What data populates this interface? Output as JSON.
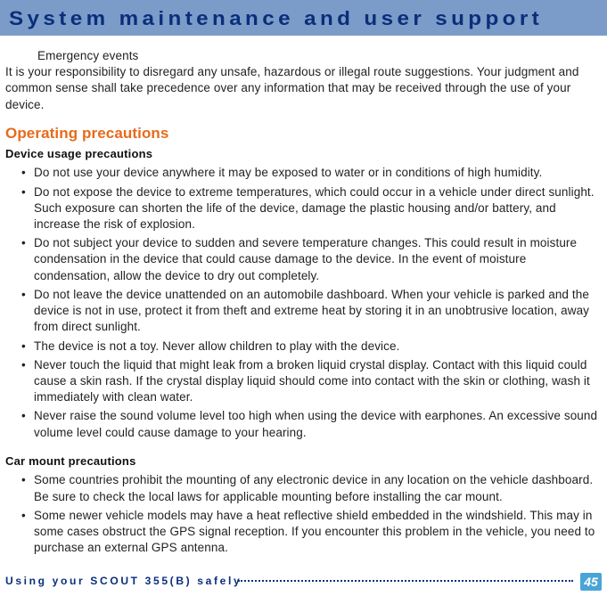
{
  "header": {
    "title": "System maintenance and user support"
  },
  "intro": {
    "line1": "Emergency events",
    "para": "It is your responsibility to disregard any unsafe, hazardous or illegal route suggestions. Your judgment and common sense shall take precedence over any information that may be received through the use of your device."
  },
  "section": {
    "heading": "Operating precautions",
    "sub1": {
      "title": "Device usage precautions",
      "items": [
        "Do not use your device anywhere it may be exposed to water or in conditions of high humidity.",
        "Do not expose the device to extreme temperatures, which could occur in a vehicle under direct sunlight. Such exposure can shorten the life of the device, damage the plastic housing and/or battery, and increase the risk of explosion.",
        "Do not subject your device to sudden and severe temperature changes. This could result in moisture condensation in the device that could cause damage to the device. In the event of moisture condensation, allow the device to dry out completely.",
        "Do not leave the device unattended on an automobile dashboard. When your vehicle is parked and the device is not in use, protect it from theft and extreme heat by storing it in an unobtrusive location, away from direct sunlight.",
        "The device is not a toy. Never allow children to play with the device.",
        "Never touch the liquid that might leak from a broken liquid crystal display. Contact with this liquid could cause a skin rash. If the crystal display liquid should come into contact with the skin or clothing, wash it immediately with clean water.",
        "Never raise the sound volume level too high when using the device with earphones. An excessive sound volume level could cause damage to your hearing."
      ]
    },
    "sub2": {
      "title": "Car mount precautions",
      "items": [
        "Some countries prohibit the mounting of any electronic device in any location on the vehicle dashboard. Be sure to check the local laws for applicable mounting before installing the car mount.",
        "Some newer vehicle models may have a heat reflective shield embedded in the windshield. This may in some cases obstruct the GPS signal reception. If you encounter this problem in the vehicle, you need to purchase an external GPS antenna."
      ]
    }
  },
  "footer": {
    "text": "Using your SCOUT 355(B) safely",
    "page": "45"
  },
  "colors": {
    "header_bg": "#7b9cc8",
    "header_text": "#0a2e7a",
    "section_heading": "#e86a1a",
    "badge_bg": "#4aa5d6",
    "badge_text": "#ffffff"
  }
}
